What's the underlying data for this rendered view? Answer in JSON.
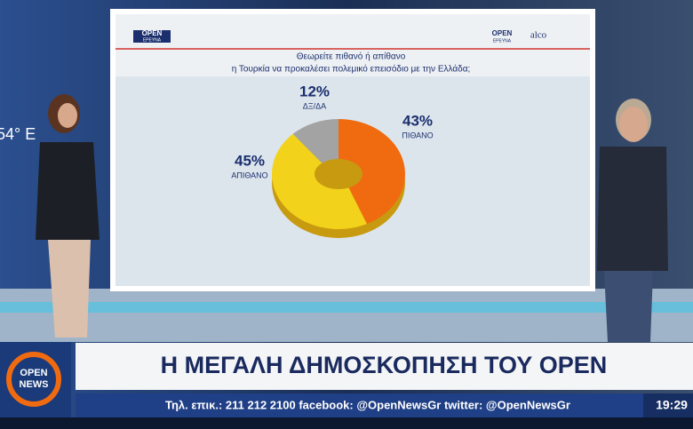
{
  "chart_data": {
    "type": "pie",
    "title": [
      "Θεωρείτε πιθανό ή απίθανο",
      "η Τουρκία να προκαλέσει πολεμικό επεισόδιο με την Ελλάδα;"
    ],
    "categories": [
      "ΠΙΘΑΝΟ",
      "ΑΠΙΘΑΝΟ",
      "ΔΞ/ΔΑ"
    ],
    "values": [
      43,
      45,
      12
    ],
    "value_labels": [
      "43%",
      "45%",
      "12%"
    ],
    "colors": [
      "#f06a10",
      "#f2d21a",
      "#a3a3a3"
    ],
    "donut": true
  },
  "screen": {
    "logo_left": [
      "OPEN",
      "ΕΡΕΥΝΑ"
    ],
    "logo_right": [
      "OPEN",
      "ΕΡΕΥΝΑ"
    ],
    "partner": "alco",
    "background_text": "54° E"
  },
  "broadcast": {
    "logo": [
      "OPEN",
      "NEWS"
    ],
    "headline": "Η ΜΕΓΑΛΗ ΔΗΜΟΣΚΟΠΗΣΗ ΤΟΥ OPEN",
    "ticker": "Τηλ. επικ.: 211 212 2100 facebook: @OpenNewsGr twitter: @OpenNewsGr",
    "clock": "19:29"
  }
}
